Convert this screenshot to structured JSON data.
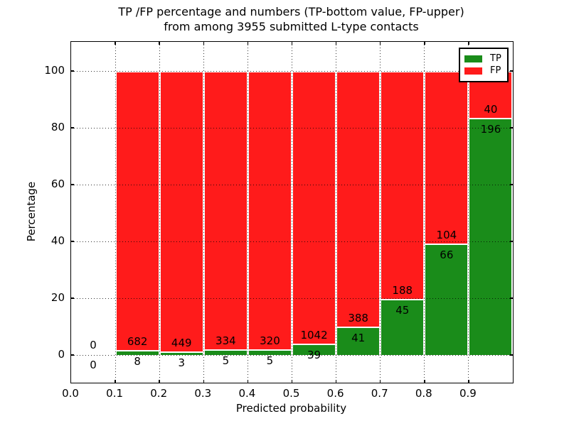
{
  "chart_data": {
    "type": "bar",
    "stacked": true,
    "units": "percent of bin total",
    "title_lines": [
      "TP /FP percentage and numbers (TP-bottom value, FP-upper)",
      "from among 3955 submitted L-type contacts"
    ],
    "title": "TP /FP percentage and numbers (TP-bottom value, FP-upper)\nfrom among 3955 submitted L-type contacts",
    "xlabel": "Predicted probability",
    "ylabel": "Percentage",
    "xlim": [
      0.0,
      1.0
    ],
    "ylim": [
      -10,
      110
    ],
    "x_tick_labels": [
      "0.0",
      "0.1",
      "0.2",
      "0.3",
      "0.4",
      "0.5",
      "0.6",
      "0.7",
      "0.8",
      "0.9"
    ],
    "y_tick_values": [
      0,
      20,
      40,
      60,
      80,
      100
    ],
    "grid": "dotted",
    "legend_position": "upper right",
    "total_contacts": 3955,
    "bins": [
      {
        "range": "0.0-0.1",
        "tp": 0,
        "fp": 0
      },
      {
        "range": "0.1-0.2",
        "tp": 8,
        "fp": 682
      },
      {
        "range": "0.2-0.3",
        "tp": 3,
        "fp": 449
      },
      {
        "range": "0.3-0.4",
        "tp": 5,
        "fp": 334
      },
      {
        "range": "0.4-0.5",
        "tp": 5,
        "fp": 320
      },
      {
        "range": "0.5-0.6",
        "tp": 39,
        "fp": 1042
      },
      {
        "range": "0.6-0.7",
        "tp": 41,
        "fp": 388
      },
      {
        "range": "0.7-0.8",
        "tp": 45,
        "fp": 188
      },
      {
        "range": "0.8-0.9",
        "tp": 66,
        "fp": 104
      },
      {
        "range": "0.9-1.0",
        "tp": 196,
        "fp": 40
      }
    ],
    "legend": [
      {
        "label": "TP",
        "color": "#1a8c1a"
      },
      {
        "label": "FP",
        "color": "#ff1b1b"
      }
    ],
    "colors": {
      "tp": "#1a8c1a",
      "fp": "#ff1b1b",
      "bar_edge": "#ffffff",
      "grid": "#000000"
    }
  }
}
